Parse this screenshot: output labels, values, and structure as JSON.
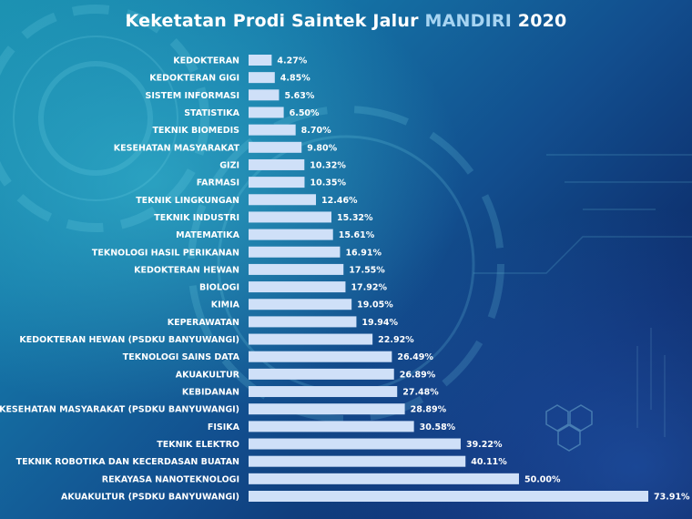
{
  "title": {
    "prefix": "Keketatan Prodi Saintek Jalur ",
    "highlight": "MANDIRI",
    "suffix": " 2020"
  },
  "colors": {
    "bar": "#cfe0f8",
    "title": "#ffffff",
    "title_highlight": "#a6d4f2",
    "labels": "#ffffff"
  },
  "chart_data": {
    "type": "bar",
    "orientation": "horizontal",
    "title": "Keketatan Prodi Saintek Jalur MANDIRI 2020",
    "xlabel": "",
    "ylabel": "",
    "xlim": [
      0,
      80
    ],
    "grid": false,
    "categories": [
      "KEDOKTERAN",
      "KEDOKTERAN GIGI",
      "SISTEM INFORMASI",
      "STATISTIKA",
      "TEKNIK BIOMEDIS",
      "KESEHATAN MASYARAKAT",
      "GIZI",
      "FARMASI",
      "TEKNIK LINGKUNGAN",
      "TEKNIK INDUSTRI",
      "MATEMATIKA",
      "TEKNOLOGI HASIL PERIKANAN",
      "KEDOKTERAN HEWAN",
      "BIOLOGI",
      "KIMIA",
      "KEPERAWATAN",
      "KEDOKTERAN HEWAN (PSDKU BANYUWANGI)",
      "TEKNOLOGI SAINS DATA",
      "AKUAKULTUR",
      "KEBIDANAN",
      "KESEHATAN MASYARAKAT (PSDKU BANYUWANGI)",
      "FISIKA",
      "TEKNIK ELEKTRO",
      "TEKNIK ROBOTIKA DAN KECERDASAN BUATAN",
      "REKAYASA NANOTEKNOLOGI",
      "AKUAKULTUR (PSDKU BANYUWANGI)"
    ],
    "values": [
      4.27,
      4.85,
      5.63,
      6.5,
      8.7,
      9.8,
      10.32,
      10.35,
      12.46,
      15.32,
      15.61,
      16.91,
      17.55,
      17.92,
      19.05,
      19.94,
      22.92,
      26.49,
      26.89,
      27.48,
      28.89,
      30.58,
      39.22,
      40.11,
      50.0,
      73.91
    ],
    "value_labels": [
      "4.27%",
      "4.85%",
      "5.63%",
      "6.50%",
      "8.70%",
      "9.80%",
      "10.32%",
      "10.35%",
      "12.46%",
      "15.32%",
      "15.61%",
      "16.91%",
      "17.55%",
      "17.92%",
      "19.05%",
      "19.94%",
      "22.92%",
      "26.49%",
      "26.89%",
      "27.48%",
      "28.89%",
      "30.58%",
      "39.22%",
      "40.11%",
      "50.00%",
      "73.91%"
    ]
  }
}
